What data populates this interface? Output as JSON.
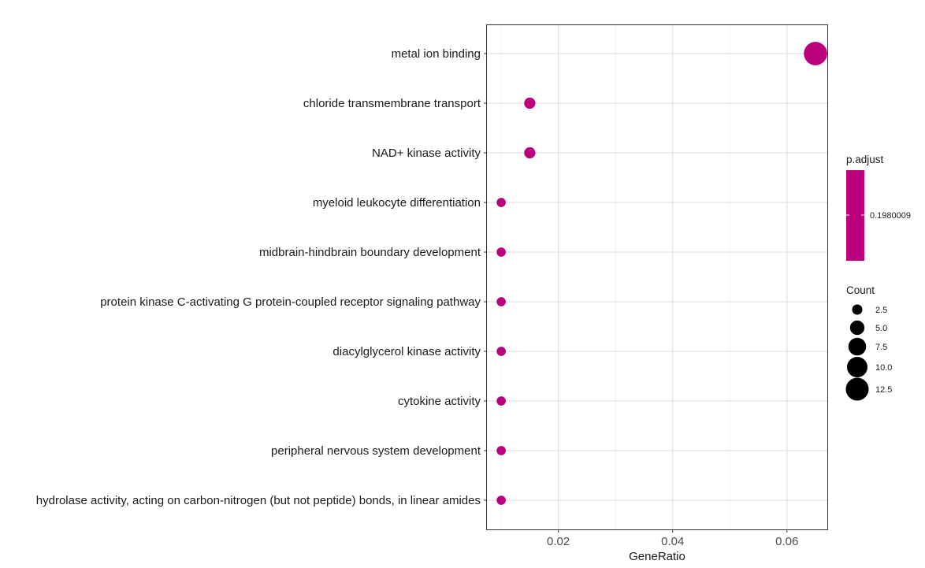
{
  "chart_data": {
    "type": "scatter",
    "title": "",
    "xlabel": "GeneRatio",
    "ylabel": "",
    "xlim": [
      0.0075,
      0.0672
    ],
    "x_ticks": [
      0.02,
      0.04,
      0.06
    ],
    "x_tick_labels": [
      "0.02",
      "0.04",
      "0.06"
    ],
    "grid": true,
    "categories": [
      "metal ion binding",
      "chloride transmembrane transport",
      "NAD+ kinase activity",
      "myeloid leukocyte differentiation",
      "midbrain-hindbrain boundary development",
      "protein kinase C-activating G protein-coupled receptor signaling pathway",
      "diacylglycerol kinase activity",
      "cytokine activity",
      "peripheral nervous system development",
      "hydrolase activity, acting on carbon-nitrogen (but not peptide) bonds, in linear amides"
    ],
    "gene_ratio": [
      0.065,
      0.015,
      0.015,
      0.01,
      0.01,
      0.01,
      0.01,
      0.01,
      0.01,
      0.01
    ],
    "count": [
      13,
      3,
      3,
      2,
      2,
      2,
      2,
      2,
      2,
      2
    ],
    "p_adjust": [
      0.1980009,
      0.1980009,
      0.1980009,
      0.1980009,
      0.1980009,
      0.1980009,
      0.1980009,
      0.1980009,
      0.1980009,
      0.1980009
    ],
    "point_color": "#BA007C",
    "legend_placement": "right",
    "color_legend": {
      "title": "p.adjust",
      "label": "0.1980009",
      "color": "#BA007C"
    },
    "size_legend": {
      "title": "Count",
      "values": [
        2.5,
        5.0,
        7.5,
        10.0,
        12.5
      ],
      "labels": [
        "2.5",
        "5.0",
        "7.5",
        "10.0",
        "12.5"
      ]
    }
  }
}
